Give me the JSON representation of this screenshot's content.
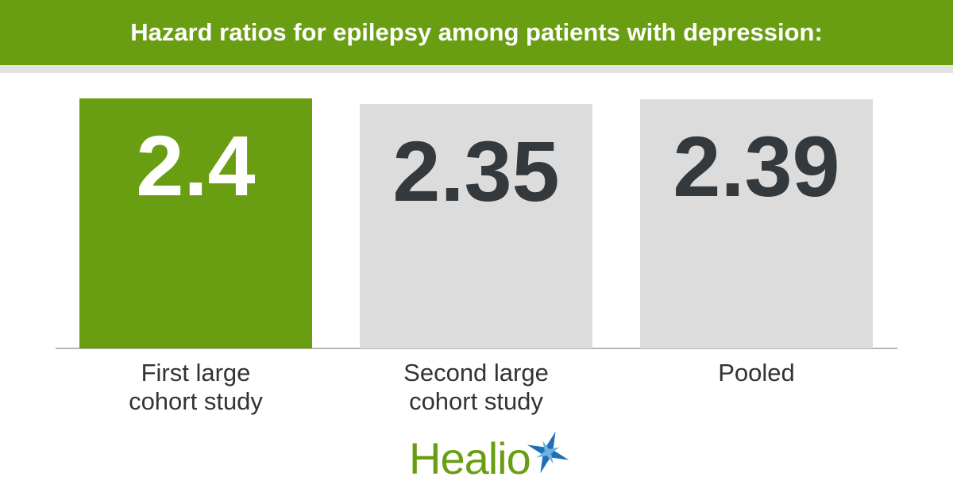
{
  "chart_data": {
    "type": "bar",
    "title": "Hazard ratios for epilepsy among patients with depression:",
    "categories": [
      "First large cohort study",
      "Second large cohort study",
      "Pooled"
    ],
    "values": [
      2.4,
      2.35,
      2.39
    ],
    "colors": [
      "#6a9e12",
      "#dcdcdc",
      "#dcdcdc"
    ],
    "value_label_colors": [
      "#ffffff",
      "#33393d",
      "#33393d"
    ]
  },
  "logo": "Healio"
}
